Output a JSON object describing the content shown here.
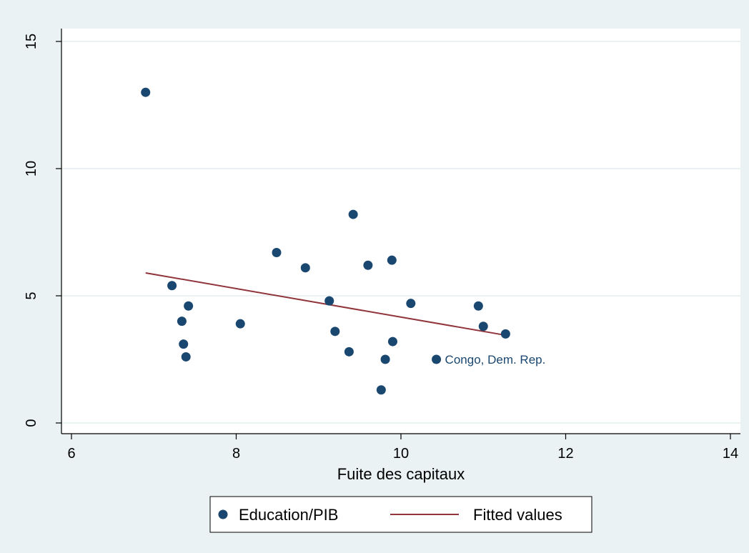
{
  "chart_data": {
    "type": "scatter",
    "title": "",
    "xlabel": "Fuite des capitaux",
    "ylabel": "",
    "xlim": [
      6,
      14
    ],
    "ylim": [
      0,
      15
    ],
    "x_ticks": [
      "6",
      "8",
      "10",
      "12",
      "14"
    ],
    "y_ticks": [
      "0",
      "5",
      "10",
      "15"
    ],
    "grid": true,
    "legend_position": "bottom",
    "colors": {
      "points": "#1a476f",
      "fit_line": "#90353b",
      "background": "#eaf2f3",
      "plot_bg": "#ffffff",
      "grid": "#eaf2f3"
    },
    "series": [
      {
        "name": "Education/PIB",
        "type": "scatter",
        "points": [
          {
            "x": 6.9,
            "y": 13.0
          },
          {
            "x": 7.22,
            "y": 5.4
          },
          {
            "x": 7.34,
            "y": 4.0
          },
          {
            "x": 7.36,
            "y": 3.1
          },
          {
            "x": 7.39,
            "y": 2.6
          },
          {
            "x": 7.42,
            "y": 4.6
          },
          {
            "x": 8.05,
            "y": 3.9
          },
          {
            "x": 8.49,
            "y": 6.7
          },
          {
            "x": 8.84,
            "y": 6.1
          },
          {
            "x": 9.13,
            "y": 4.8
          },
          {
            "x": 9.2,
            "y": 3.6
          },
          {
            "x": 9.37,
            "y": 2.8
          },
          {
            "x": 9.42,
            "y": 8.2
          },
          {
            "x": 9.6,
            "y": 6.2
          },
          {
            "x": 9.76,
            "y": 1.3
          },
          {
            "x": 9.81,
            "y": 2.5
          },
          {
            "x": 9.89,
            "y": 6.4
          },
          {
            "x": 9.9,
            "y": 3.2
          },
          {
            "x": 10.12,
            "y": 4.7
          },
          {
            "x": 10.43,
            "y": 2.5,
            "label": "Congo, Dem. Rep."
          },
          {
            "x": 10.94,
            "y": 4.6
          },
          {
            "x": 11.0,
            "y": 3.8
          },
          {
            "x": 11.27,
            "y": 3.5
          }
        ]
      },
      {
        "name": "Fitted values",
        "type": "line",
        "points": [
          {
            "x": 6.9,
            "y": 5.9
          },
          {
            "x": 11.27,
            "y": 3.45
          }
        ]
      }
    ]
  }
}
